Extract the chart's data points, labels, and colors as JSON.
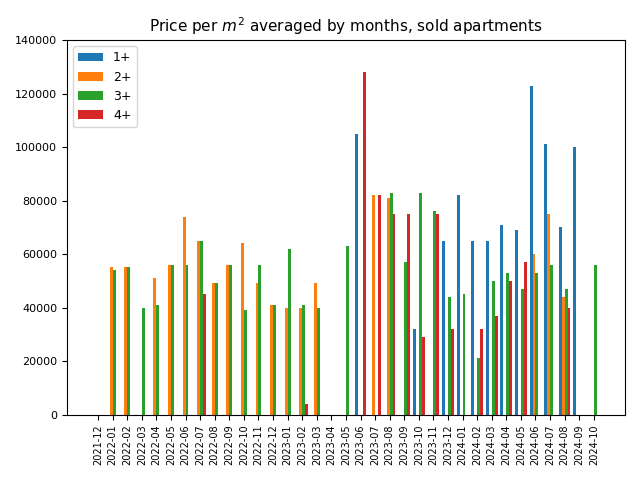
{
  "title": "Price per $m^2$ averaged by months, sold apartments",
  "categories": [
    "2021-12",
    "2022-01",
    "2022-02",
    "2022-03",
    "2022-04",
    "2022-05",
    "2022-06",
    "2022-07",
    "2022-08",
    "2022-09",
    "2022-10",
    "2022-11",
    "2022-12",
    "2023-01",
    "2023-02",
    "2023-03",
    "2023-04",
    "2023-05",
    "2023-06",
    "2023-07",
    "2023-08",
    "2023-09",
    "2023-10",
    "2023-11",
    "2023-12",
    "2024-01",
    "2024-02",
    "2024-03",
    "2024-04",
    "2024-05",
    "2024-06",
    "2024-07",
    "2024-08",
    "2024-09",
    "2024-10"
  ],
  "series": {
    "1+": [
      0,
      0,
      0,
      0,
      0,
      0,
      0,
      0,
      0,
      0,
      0,
      0,
      0,
      0,
      0,
      0,
      0,
      0,
      105000,
      0,
      0,
      0,
      32000,
      0,
      65000,
      82000,
      65000,
      65000,
      71000,
      69000,
      123000,
      101000,
      70000,
      100000,
      0
    ],
    "2+": [
      0,
      55000,
      55000,
      0,
      51000,
      56000,
      74000,
      65000,
      49000,
      56000,
      64000,
      49000,
      41000,
      40000,
      40000,
      49000,
      0,
      0,
      0,
      82000,
      81000,
      0,
      0,
      0,
      0,
      0,
      0,
      0,
      0,
      0,
      60000,
      75000,
      44000,
      0,
      0
    ],
    "3+": [
      0,
      54000,
      55000,
      40000,
      41000,
      56000,
      56000,
      65000,
      49000,
      56000,
      39000,
      56000,
      41000,
      62000,
      41000,
      40000,
      0,
      63000,
      0,
      0,
      83000,
      57000,
      83000,
      76000,
      44000,
      45000,
      21000,
      50000,
      53000,
      47000,
      53000,
      56000,
      47000,
      0,
      56000
    ],
    "4+": [
      0,
      0,
      0,
      0,
      0,
      0,
      0,
      45000,
      0,
      0,
      0,
      0,
      0,
      0,
      4000,
      0,
      0,
      0,
      128000,
      82000,
      75000,
      75000,
      29000,
      75000,
      32000,
      0,
      32000,
      37000,
      50000,
      57000,
      0,
      0,
      40000,
      0,
      0
    ]
  },
  "colors": {
    "1+": "#1f77b4",
    "2+": "#ff7f0e",
    "3+": "#2ca02c",
    "4+": "#d62728"
  },
  "ylim": [
    0,
    140000
  ],
  "yticks": [
    0,
    20000,
    40000,
    60000,
    80000,
    100000,
    120000,
    140000
  ],
  "bar_width": 0.2,
  "offsets": [
    -0.3,
    -0.1,
    0.1,
    0.3
  ]
}
